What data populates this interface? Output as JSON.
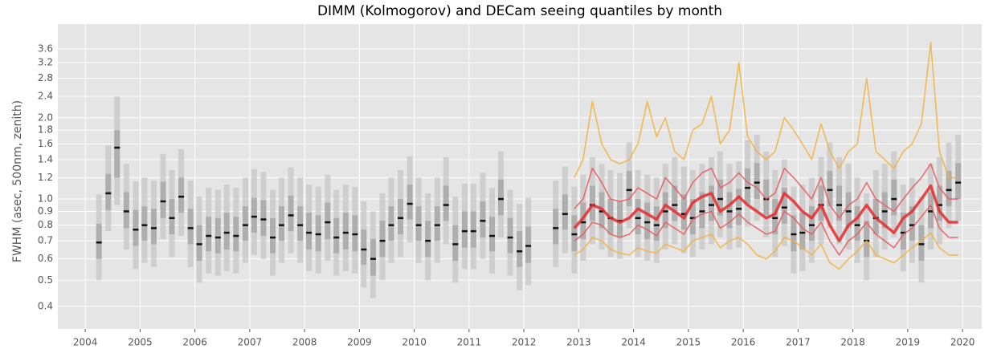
{
  "chart_data": {
    "type": "quantile",
    "title": "DIMM (Kolmogorov) and DECam seeing quantiles by month",
    "y_label": "FWHM (asec, 500nm, zenith)",
    "log_y": true,
    "grid": true,
    "xlim": [
      2003.5,
      2020.35
    ],
    "ylim": [
      0.33,
      4.45
    ],
    "xticks": [
      2004,
      2005,
      2006,
      2007,
      2008,
      2009,
      2010,
      2011,
      2012,
      2013,
      2014,
      2015,
      2016,
      2017,
      2018,
      2019,
      2020
    ],
    "yticks": [
      0.4,
      0.5,
      0.6,
      0.7,
      0.8,
      0.9,
      {
        "value": 1.0,
        "label": "1.0"
      },
      1.2,
      1.4,
      1.6,
      1.8,
      {
        "value": 2.0,
        "label": "2.0"
      },
      2.4,
      2.8,
      3.2,
      3.6
    ],
    "dimm": {
      "outer_color": "#c4c4c4",
      "inner_color": "#9a9a9a",
      "median_color": "#111111",
      "x": [
        2004.25,
        2004.42,
        2004.58,
        2004.75,
        2004.92,
        2005.08,
        2005.25,
        2005.42,
        2005.58,
        2005.75,
        2005.92,
        2006.08,
        2006.25,
        2006.42,
        2006.58,
        2006.75,
        2006.92,
        2007.08,
        2007.25,
        2007.42,
        2007.58,
        2007.75,
        2007.92,
        2008.08,
        2008.25,
        2008.42,
        2008.58,
        2008.75,
        2008.92,
        2009.08,
        2009.25,
        2009.42,
        2009.58,
        2009.75,
        2009.92,
        2010.08,
        2010.25,
        2010.42,
        2010.58,
        2010.75,
        2010.92,
        2011.08,
        2011.25,
        2011.42,
        2011.58,
        2011.75,
        2011.92,
        2012.08,
        2012.58,
        2012.75,
        2012.92,
        2013.08,
        2013.25,
        2013.42,
        2013.58,
        2013.75,
        2013.92,
        2014.08,
        2014.25,
        2014.42,
        2014.58,
        2014.75,
        2014.92,
        2015.08,
        2015.25,
        2015.42,
        2015.58,
        2015.75,
        2015.92,
        2016.08,
        2016.25,
        2016.42,
        2016.58,
        2016.75,
        2016.92,
        2017.08,
        2017.25,
        2017.42,
        2017.58,
        2017.75,
        2017.92,
        2018.08,
        2018.25,
        2018.42,
        2018.58,
        2018.75,
        2018.92,
        2019.08,
        2019.25,
        2019.42,
        2019.58,
        2019.75,
        2019.92
      ],
      "p50": [
        0.69,
        1.05,
        1.55,
        0.9,
        0.77,
        0.8,
        0.78,
        0.98,
        0.85,
        1.02,
        0.78,
        0.68,
        0.73,
        0.72,
        0.75,
        0.73,
        0.8,
        0.86,
        0.84,
        0.72,
        0.8,
        0.87,
        0.8,
        0.75,
        0.74,
        0.82,
        0.72,
        0.75,
        0.74,
        0.65,
        0.6,
        0.7,
        0.8,
        0.85,
        0.96,
        0.8,
        0.7,
        0.8,
        0.95,
        0.68,
        0.76,
        0.76,
        0.83,
        0.73,
        1.0,
        0.72,
        0.64,
        0.67,
        0.78,
        0.88,
        0.74,
        0.82,
        0.95,
        0.9,
        0.85,
        0.83,
        1.08,
        0.85,
        0.82,
        0.8,
        0.9,
        0.95,
        0.88,
        0.85,
        0.9,
        0.95,
        1.0,
        0.9,
        0.92,
        1.1,
        1.15,
        1.0,
        0.85,
        0.93,
        0.74,
        0.75,
        0.8,
        0.95,
        1.08,
        0.95,
        0.9,
        0.8,
        0.7,
        0.85,
        0.9,
        1.0,
        0.75,
        0.8,
        0.68,
        0.9,
        0.95,
        1.08,
        1.15
      ],
      "p10": [
        0.5,
        0.76,
        0.95,
        0.65,
        0.55,
        0.58,
        0.56,
        0.71,
        0.61,
        0.73,
        0.56,
        0.49,
        0.53,
        0.52,
        0.54,
        0.53,
        0.58,
        0.62,
        0.6,
        0.52,
        0.58,
        0.63,
        0.58,
        0.54,
        0.53,
        0.59,
        0.52,
        0.54,
        0.53,
        0.47,
        0.43,
        0.5,
        0.58,
        0.61,
        0.69,
        0.58,
        0.5,
        0.58,
        0.68,
        0.49,
        0.55,
        0.55,
        0.6,
        0.53,
        0.72,
        0.52,
        0.46,
        0.48,
        0.56,
        0.63,
        0.53,
        0.59,
        0.68,
        0.65,
        0.61,
        0.6,
        0.78,
        0.61,
        0.59,
        0.58,
        0.65,
        0.68,
        0.63,
        0.61,
        0.65,
        0.68,
        0.72,
        0.65,
        0.66,
        0.79,
        0.83,
        0.72,
        0.61,
        0.67,
        0.53,
        0.54,
        0.58,
        0.68,
        0.78,
        0.68,
        0.65,
        0.58,
        0.5,
        0.61,
        0.65,
        0.72,
        0.54,
        0.58,
        0.49,
        0.65,
        0.68,
        0.78,
        0.83
      ],
      "p25": [
        0.6,
        0.91,
        1.2,
        0.78,
        0.67,
        0.7,
        0.68,
        0.85,
        0.74,
        0.89,
        0.68,
        0.59,
        0.64,
        0.63,
        0.65,
        0.64,
        0.7,
        0.75,
        0.73,
        0.63,
        0.7,
        0.76,
        0.7,
        0.65,
        0.64,
        0.71,
        0.63,
        0.65,
        0.64,
        0.57,
        0.52,
        0.61,
        0.7,
        0.74,
        0.84,
        0.7,
        0.61,
        0.7,
        0.83,
        0.59,
        0.66,
        0.66,
        0.72,
        0.64,
        0.87,
        0.63,
        0.56,
        0.58,
        0.68,
        0.77,
        0.64,
        0.71,
        0.83,
        0.78,
        0.74,
        0.72,
        0.94,
        0.74,
        0.71,
        0.7,
        0.78,
        0.83,
        0.77,
        0.74,
        0.78,
        0.83,
        0.87,
        0.78,
        0.8,
        0.96,
        1.0,
        0.87,
        0.74,
        0.81,
        0.64,
        0.65,
        0.7,
        0.83,
        0.94,
        0.83,
        0.78,
        0.7,
        0.61,
        0.74,
        0.78,
        0.87,
        0.65,
        0.7,
        0.59,
        0.78,
        0.83,
        0.94,
        1.0
      ],
      "p75": [
        0.81,
        1.24,
        1.8,
        1.06,
        0.91,
        0.94,
        0.92,
        1.16,
        1.0,
        1.2,
        0.92,
        0.8,
        0.86,
        0.85,
        0.89,
        0.86,
        0.94,
        1.01,
        0.99,
        0.85,
        0.94,
        1.03,
        0.94,
        0.89,
        0.87,
        0.97,
        0.85,
        0.89,
        0.87,
        0.77,
        0.71,
        0.83,
        0.94,
        1.0,
        1.13,
        0.94,
        0.83,
        0.94,
        1.12,
        0.8,
        0.9,
        0.9,
        0.98,
        0.86,
        1.18,
        0.85,
        0.76,
        0.79,
        0.92,
        1.04,
        0.87,
        0.97,
        1.12,
        1.06,
        1.0,
        0.98,
        1.27,
        1.0,
        0.97,
        0.94,
        1.06,
        1.12,
        1.04,
        1.0,
        1.06,
        1.12,
        1.18,
        1.06,
        1.09,
        1.3,
        1.36,
        1.18,
        1.0,
        1.1,
        0.87,
        0.89,
        0.94,
        1.12,
        1.27,
        1.12,
        1.06,
        0.94,
        0.83,
        1.0,
        1.06,
        1.18,
        0.89,
        0.94,
        0.8,
        1.06,
        1.12,
        1.27,
        1.36
      ],
      "p90": [
        1.04,
        1.58,
        2.4,
        1.35,
        1.16,
        1.2,
        1.17,
        1.47,
        1.28,
        1.53,
        1.17,
        1.02,
        1.1,
        1.08,
        1.13,
        1.1,
        1.2,
        1.29,
        1.26,
        1.08,
        1.2,
        1.31,
        1.2,
        1.13,
        1.11,
        1.23,
        1.08,
        1.13,
        1.11,
        0.98,
        0.9,
        1.05,
        1.2,
        1.28,
        1.44,
        1.2,
        1.05,
        1.2,
        1.43,
        1.02,
        1.14,
        1.14,
        1.25,
        1.1,
        1.5,
        1.08,
        0.96,
        1.01,
        1.17,
        1.32,
        1.11,
        1.23,
        1.43,
        1.35,
        1.28,
        1.25,
        1.62,
        1.28,
        1.23,
        1.2,
        1.35,
        1.43,
        1.32,
        1.28,
        1.35,
        1.43,
        1.5,
        1.35,
        1.38,
        1.65,
        1.73,
        1.5,
        1.28,
        1.4,
        1.11,
        1.13,
        1.2,
        1.43,
        1.62,
        1.43,
        1.35,
        1.2,
        1.05,
        1.28,
        1.35,
        1.5,
        1.13,
        1.2,
        1.02,
        1.35,
        1.43,
        1.62,
        1.73
      ]
    },
    "decam": {
      "outer_color": "#f2b13b",
      "inner_color": "#e8585c",
      "median_color": "#e82a2e",
      "x": [
        2012.92,
        2013.08,
        2013.25,
        2013.42,
        2013.58,
        2013.75,
        2013.92,
        2014.08,
        2014.25,
        2014.42,
        2014.58,
        2014.75,
        2014.92,
        2015.08,
        2015.25,
        2015.42,
        2015.58,
        2015.75,
        2015.92,
        2016.08,
        2016.25,
        2016.42,
        2016.58,
        2016.75,
        2016.92,
        2017.08,
        2017.25,
        2017.42,
        2017.58,
        2017.75,
        2017.92,
        2018.08,
        2018.25,
        2018.42,
        2018.58,
        2018.75,
        2018.92,
        2019.08,
        2019.25,
        2019.42,
        2019.58,
        2019.75,
        2019.92
      ],
      "p10": [
        0.62,
        0.65,
        0.72,
        0.7,
        0.65,
        0.63,
        0.62,
        0.66,
        0.64,
        0.63,
        0.68,
        0.66,
        0.64,
        0.7,
        0.72,
        0.74,
        0.66,
        0.7,
        0.72,
        0.68,
        0.62,
        0.6,
        0.64,
        0.72,
        0.7,
        0.66,
        0.62,
        0.68,
        0.58,
        0.55,
        0.6,
        0.64,
        0.7,
        0.62,
        0.6,
        0.58,
        0.62,
        0.66,
        0.7,
        0.75,
        0.66,
        0.62,
        0.62
      ],
      "p25": [
        0.7,
        0.74,
        0.82,
        0.8,
        0.74,
        0.72,
        0.74,
        0.8,
        0.77,
        0.73,
        0.82,
        0.78,
        0.74,
        0.84,
        0.88,
        0.9,
        0.78,
        0.82,
        0.88,
        0.82,
        0.78,
        0.74,
        0.76,
        0.9,
        0.85,
        0.78,
        0.74,
        0.82,
        0.7,
        0.62,
        0.7,
        0.74,
        0.82,
        0.74,
        0.7,
        0.66,
        0.74,
        0.78,
        0.86,
        0.95,
        0.78,
        0.72,
        0.72
      ],
      "p50": [
        0.78,
        0.85,
        0.95,
        0.92,
        0.85,
        0.82,
        0.85,
        0.92,
        0.88,
        0.84,
        0.95,
        0.9,
        0.85,
        0.97,
        1.02,
        1.05,
        0.9,
        0.95,
        1.02,
        0.95,
        0.9,
        0.85,
        0.88,
        1.05,
        0.98,
        0.9,
        0.85,
        0.95,
        0.8,
        0.7,
        0.8,
        0.85,
        0.95,
        0.85,
        0.8,
        0.75,
        0.85,
        0.9,
        1.0,
        1.12,
        0.9,
        0.82,
        0.82
      ],
      "p75": [
        0.92,
        1.0,
        1.3,
        1.15,
        1.0,
        0.98,
        1.0,
        1.1,
        1.05,
        1.0,
        1.2,
        1.1,
        1.0,
        1.15,
        1.25,
        1.3,
        1.1,
        1.15,
        1.25,
        1.15,
        1.1,
        1.0,
        1.05,
        1.3,
        1.2,
        1.1,
        1.0,
        1.2,
        0.95,
        0.85,
        0.95,
        1.0,
        1.15,
        1.0,
        0.95,
        0.9,
        1.0,
        1.1,
        1.2,
        1.35,
        1.1,
        1.0,
        1.0
      ],
      "p90": [
        1.2,
        1.4,
        2.3,
        1.6,
        1.4,
        1.35,
        1.4,
        1.6,
        2.3,
        1.7,
        2.0,
        1.5,
        1.4,
        1.8,
        1.9,
        2.4,
        1.6,
        1.8,
        3.2,
        1.7,
        1.5,
        1.4,
        1.5,
        2.0,
        1.8,
        1.6,
        1.4,
        1.9,
        1.5,
        1.3,
        1.5,
        1.6,
        2.8,
        1.5,
        1.4,
        1.3,
        1.5,
        1.6,
        1.9,
        3.8,
        1.5,
        1.2,
        1.2
      ]
    }
  }
}
